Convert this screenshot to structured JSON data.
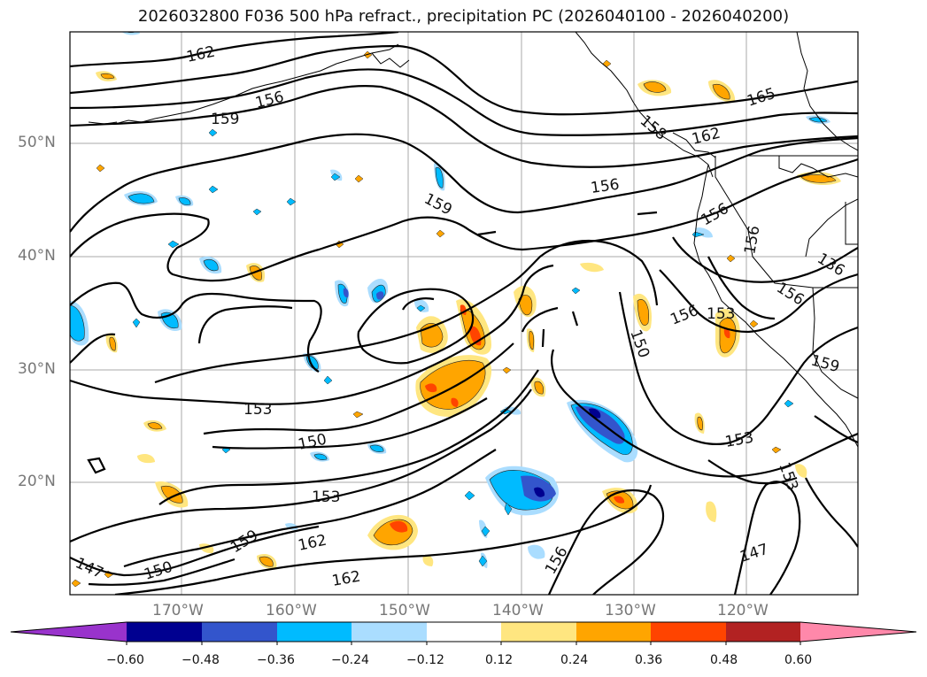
{
  "title": "2026032800 F036 500 hPa refract., precipitation PC (2026040100 - 2026040200)",
  "lat_labels": [
    "50°N",
    "40°N",
    "30°N",
    "20°N"
  ],
  "lon_labels": [
    "170°W",
    "160°W",
    "150°W",
    "140°W",
    "130°W",
    "120°W"
  ],
  "contour_labels": [
    "162",
    "156",
    "159",
    "156",
    "159",
    "165",
    "156",
    "162",
    "156",
    "156",
    "156",
    "136",
    "156",
    "153",
    "150",
    "153",
    "150",
    "153",
    "159",
    "162",
    "162",
    "147",
    "150",
    "156",
    "153",
    "153",
    "147",
    "159",
    "158"
  ],
  "colorbar": {
    "ticks": [
      "−0.60",
      "−0.48",
      "−0.36",
      "−0.24",
      "−0.12",
      "0.12",
      "0.24",
      "0.36",
      "0.48",
      "0.60"
    ],
    "colors": {
      "under": "#9933cc",
      "neg_060": "#000090",
      "neg_048": "#3355cc",
      "neg_036": "#00bbff",
      "neg_024": "#aaddff",
      "neutral": "#ffffff",
      "pos_012": "#ffe680",
      "pos_024": "#ffa500",
      "pos_036": "#ff4400",
      "pos_048": "#b22222",
      "over": "#ff88aa"
    }
  }
}
